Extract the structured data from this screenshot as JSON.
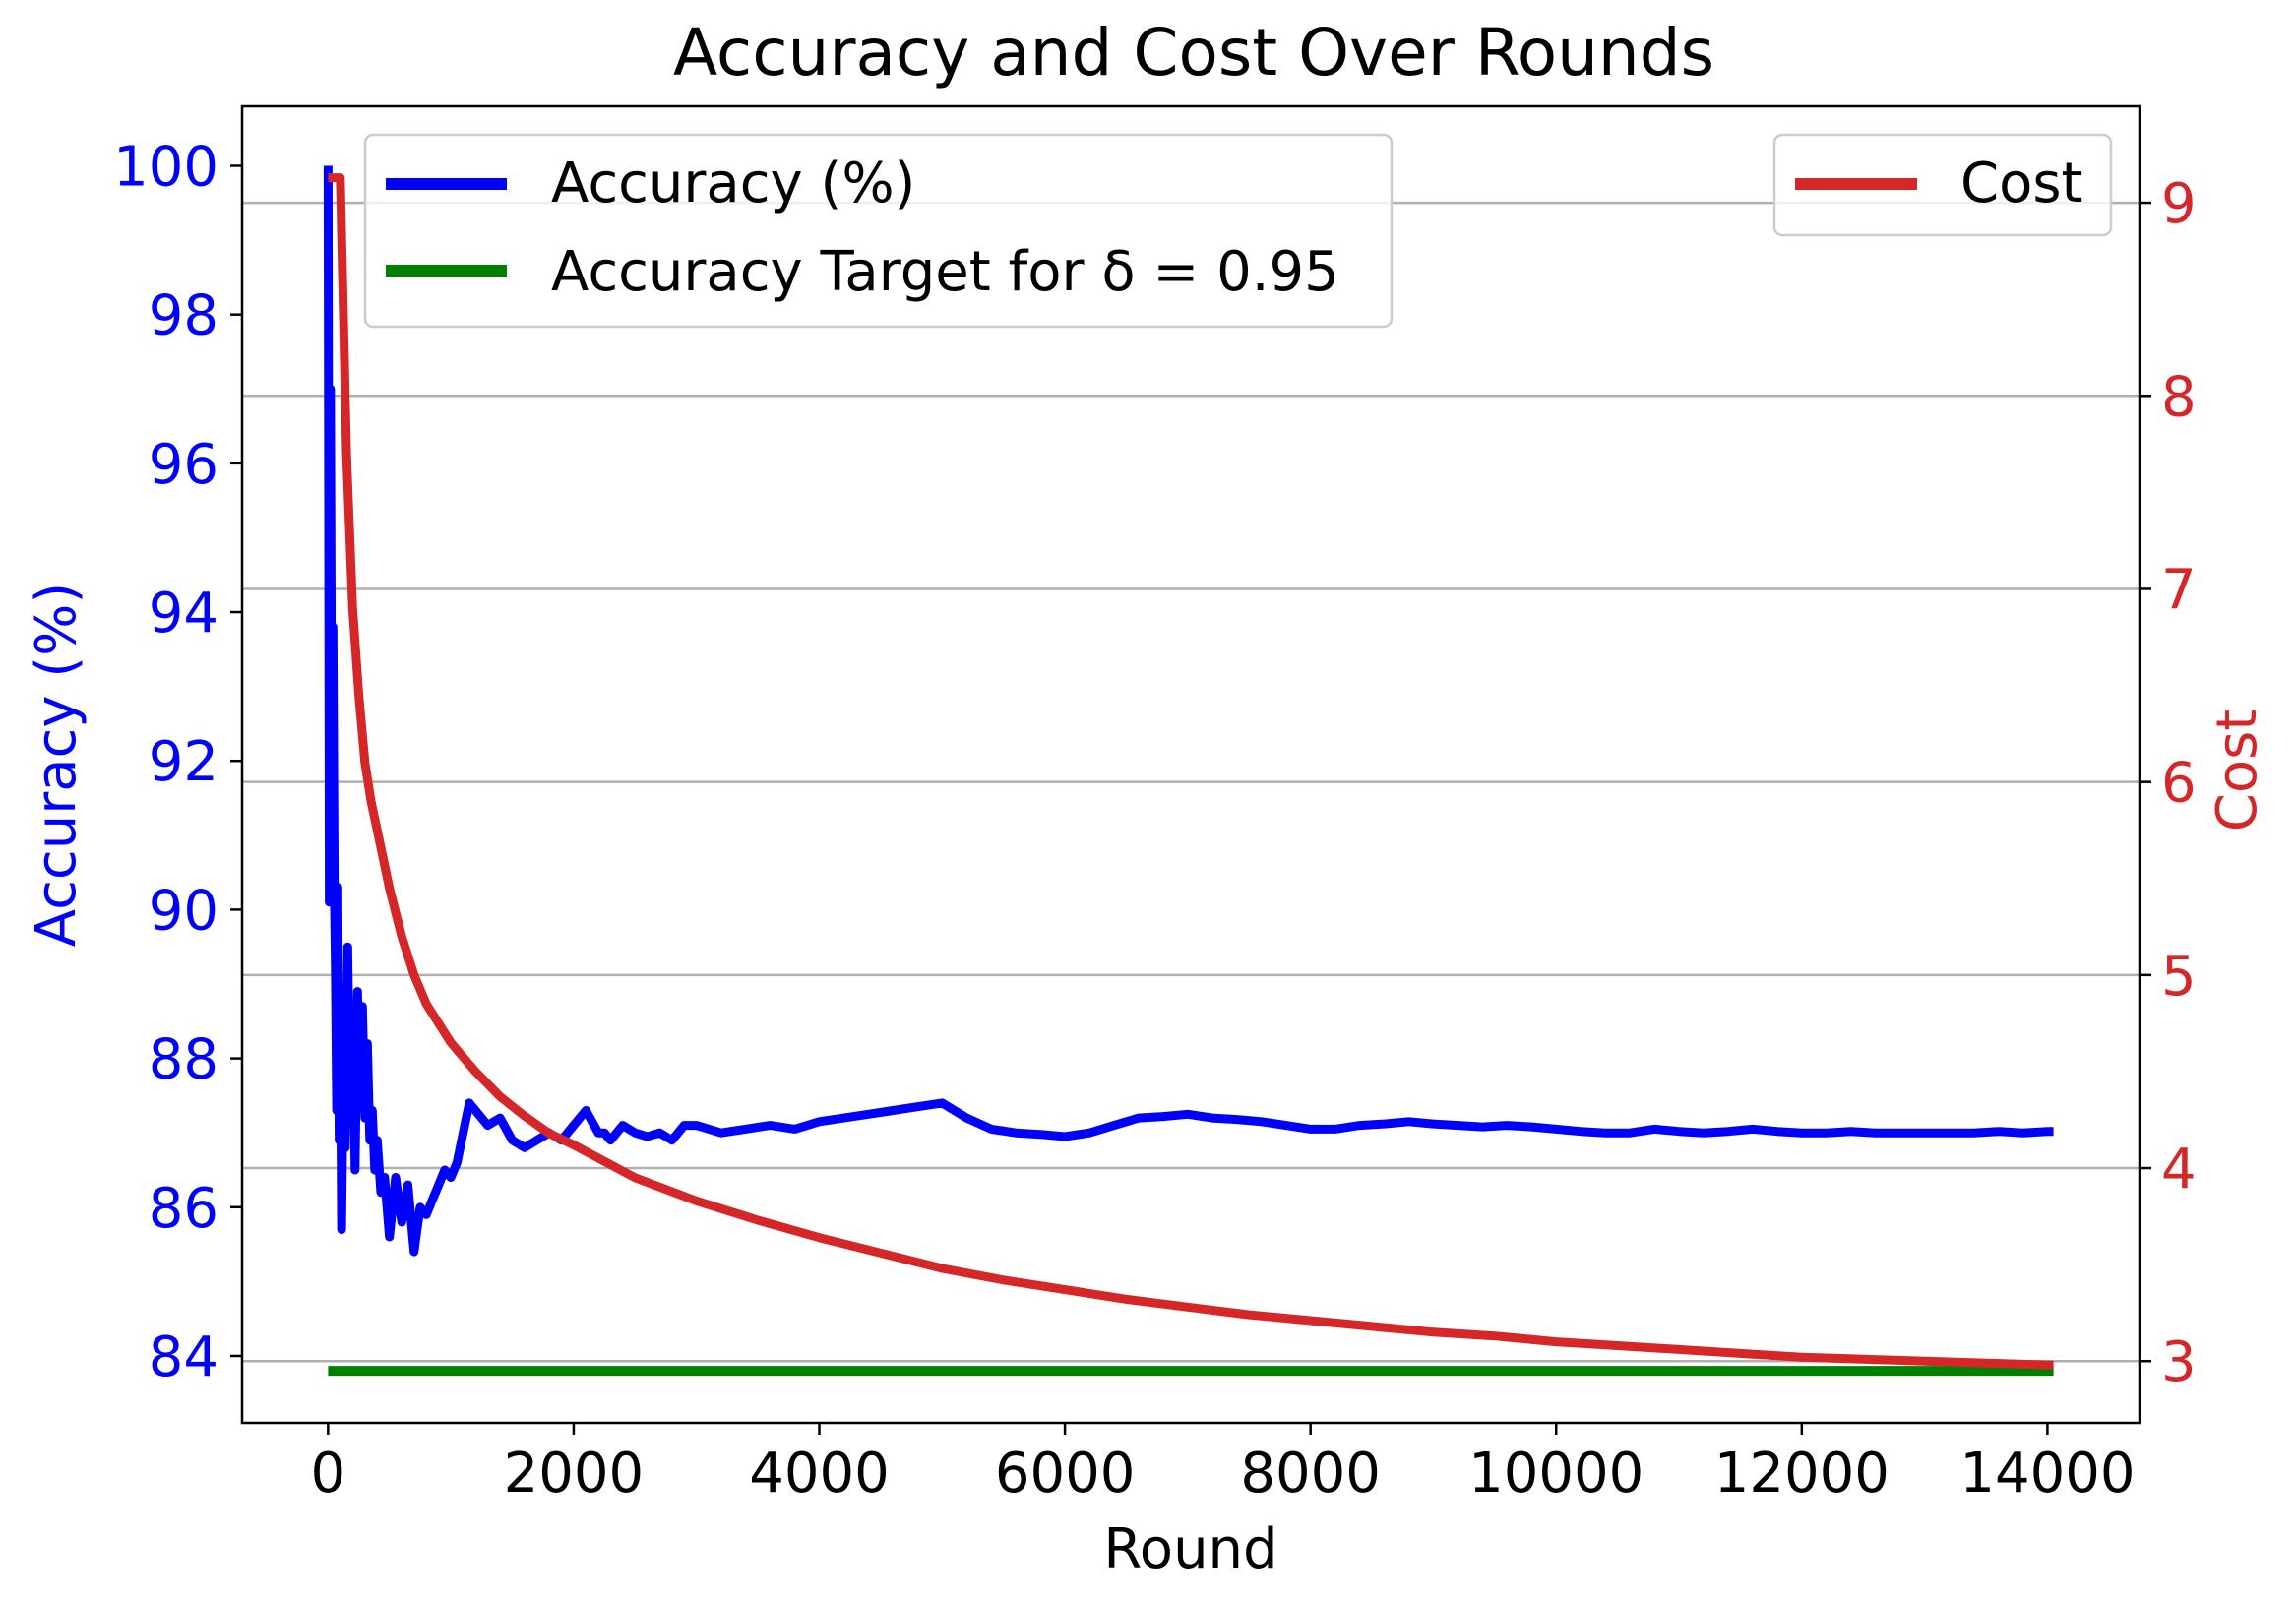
{
  "chart_data": {
    "type": "line",
    "title": "Accuracy and Cost Over Rounds",
    "xlabel": "Round",
    "xlim": [
      -700,
      14750
    ],
    "xticks": [
      0,
      2000,
      4000,
      6000,
      8000,
      10000,
      12000,
      14000
    ],
    "xtick_labels": [
      "0",
      "2000",
      "4000",
      "6000",
      "8000",
      "10000",
      "12000",
      "14000"
    ],
    "left_axis": {
      "label": "Accuracy (%)",
      "color": "#0000ff",
      "ylim": [
        83.1,
        100.8
      ],
      "ticks": [
        84,
        86,
        88,
        90,
        92,
        94,
        96,
        98,
        100
      ],
      "tick_labels": [
        "84",
        "86",
        "88",
        "90",
        "92",
        "94",
        "96",
        "98",
        "100"
      ]
    },
    "right_axis": {
      "label": "Cost",
      "color": "#d62728",
      "ylim": [
        2.68,
        9.5
      ],
      "ticks": [
        3,
        4,
        5,
        6,
        7,
        8,
        9
      ],
      "tick_labels": [
        "3",
        "4",
        "5",
        "6",
        "7",
        "8",
        "9"
      ]
    },
    "grid": true,
    "series": [
      {
        "name": "Accuracy (%)",
        "axis": "left",
        "color": "#0000ff",
        "x": [
          0,
          10,
          20,
          30,
          40,
          50,
          60,
          70,
          80,
          90,
          100,
          110,
          120,
          140,
          160,
          180,
          200,
          220,
          240,
          260,
          280,
          300,
          320,
          340,
          360,
          380,
          400,
          430,
          460,
          500,
          550,
          600,
          650,
          700,
          750,
          800,
          850,
          900,
          950,
          1000,
          1050,
          1100,
          1150,
          1200,
          1300,
          1400,
          1500,
          1600,
          1700,
          1800,
          1900,
          2000,
          2100,
          2200,
          2250,
          2300,
          2400,
          2500,
          2600,
          2700,
          2800,
          2900,
          3000,
          3200,
          3400,
          3600,
          3800,
          4000,
          4200,
          4400,
          4600,
          4800,
          5000,
          5200,
          5400,
          5600,
          5800,
          6000,
          6200,
          6400,
          6600,
          6800,
          7000,
          7200,
          7400,
          7600,
          7800,
          8000,
          8200,
          8400,
          8600,
          8800,
          9000,
          9200,
          9400,
          9600,
          9800,
          10000,
          10200,
          10400,
          10600,
          10800,
          11000,
          11200,
          11400,
          11600,
          11800,
          12000,
          12200,
          12400,
          12600,
          12800,
          13000,
          13200,
          13400,
          13600,
          13800,
          14000,
          14050
        ],
        "y": [
          100,
          90.1,
          97.0,
          91.5,
          93.8,
          90.4,
          89.2,
          87.3,
          90.3,
          86.9,
          88.5,
          85.7,
          87.1,
          86.8,
          89.5,
          87.2,
          88.6,
          86.5,
          88.9,
          87.4,
          88.7,
          87.2,
          88.2,
          86.9,
          87.3,
          86.5,
          86.9,
          86.2,
          86.4,
          85.6,
          86.4,
          85.8,
          86.3,
          85.4,
          86.0,
          85.9,
          86.1,
          86.3,
          86.5,
          86.4,
          86.6,
          87.0,
          87.4,
          87.3,
          87.1,
          87.2,
          86.9,
          86.8,
          86.9,
          87.0,
          86.9,
          87.1,
          87.3,
          87.0,
          87.0,
          86.9,
          87.1,
          87.0,
          86.95,
          87.0,
          86.9,
          87.1,
          87.1,
          87.0,
          87.05,
          87.1,
          87.05,
          87.15,
          87.2,
          87.25,
          87.3,
          87.35,
          87.4,
          87.2,
          87.05,
          87.0,
          86.98,
          86.95,
          87.0,
          87.1,
          87.2,
          87.22,
          87.25,
          87.2,
          87.18,
          87.15,
          87.1,
          87.05,
          87.05,
          87.1,
          87.12,
          87.15,
          87.12,
          87.1,
          87.08,
          87.1,
          87.08,
          87.05,
          87.02,
          87.0,
          87.0,
          87.05,
          87.02,
          87.0,
          87.02,
          87.05,
          87.02,
          87.0,
          87.0,
          87.02,
          87.0,
          87.0,
          87.0,
          87.0,
          87.0,
          87.02,
          87.0,
          87.02,
          87.02
        ]
      },
      {
        "name": "Accuracy Target for δ = 0.95",
        "axis": "left",
        "color": "#008000",
        "x": [
          0,
          14050
        ],
        "y": [
          83.8,
          83.8
        ]
      },
      {
        "name": "Cost",
        "axis": "right",
        "color": "#d62728",
        "x": [
          0,
          100,
          150,
          200,
          250,
          300,
          350,
          400,
          450,
          500,
          600,
          700,
          800,
          900,
          1000,
          1200,
          1400,
          1600,
          1800,
          2000,
          2500,
          3000,
          3500,
          4000,
          4500,
          5000,
          5500,
          6000,
          6500,
          7000,
          7500,
          8000,
          8500,
          9000,
          9500,
          10000,
          10500,
          11000,
          11500,
          12000,
          12500,
          13000,
          13500,
          14000,
          14050
        ],
        "y": [
          9.13,
          9.13,
          7.7,
          6.9,
          6.45,
          6.1,
          5.9,
          5.75,
          5.6,
          5.45,
          5.2,
          5.0,
          4.85,
          4.75,
          4.65,
          4.5,
          4.37,
          4.27,
          4.18,
          4.12,
          3.95,
          3.83,
          3.73,
          3.64,
          3.56,
          3.48,
          3.42,
          3.37,
          3.32,
          3.28,
          3.24,
          3.21,
          3.18,
          3.15,
          3.13,
          3.1,
          3.08,
          3.06,
          3.04,
          3.02,
          3.01,
          3.0,
          2.99,
          2.98,
          2.98
        ]
      }
    ],
    "legends": [
      {
        "placement": "upper-left",
        "entries": [
          "Accuracy (%)",
          "Accuracy Target for δ = 0.95"
        ]
      },
      {
        "placement": "upper-right",
        "entries": [
          "Cost"
        ]
      }
    ]
  }
}
